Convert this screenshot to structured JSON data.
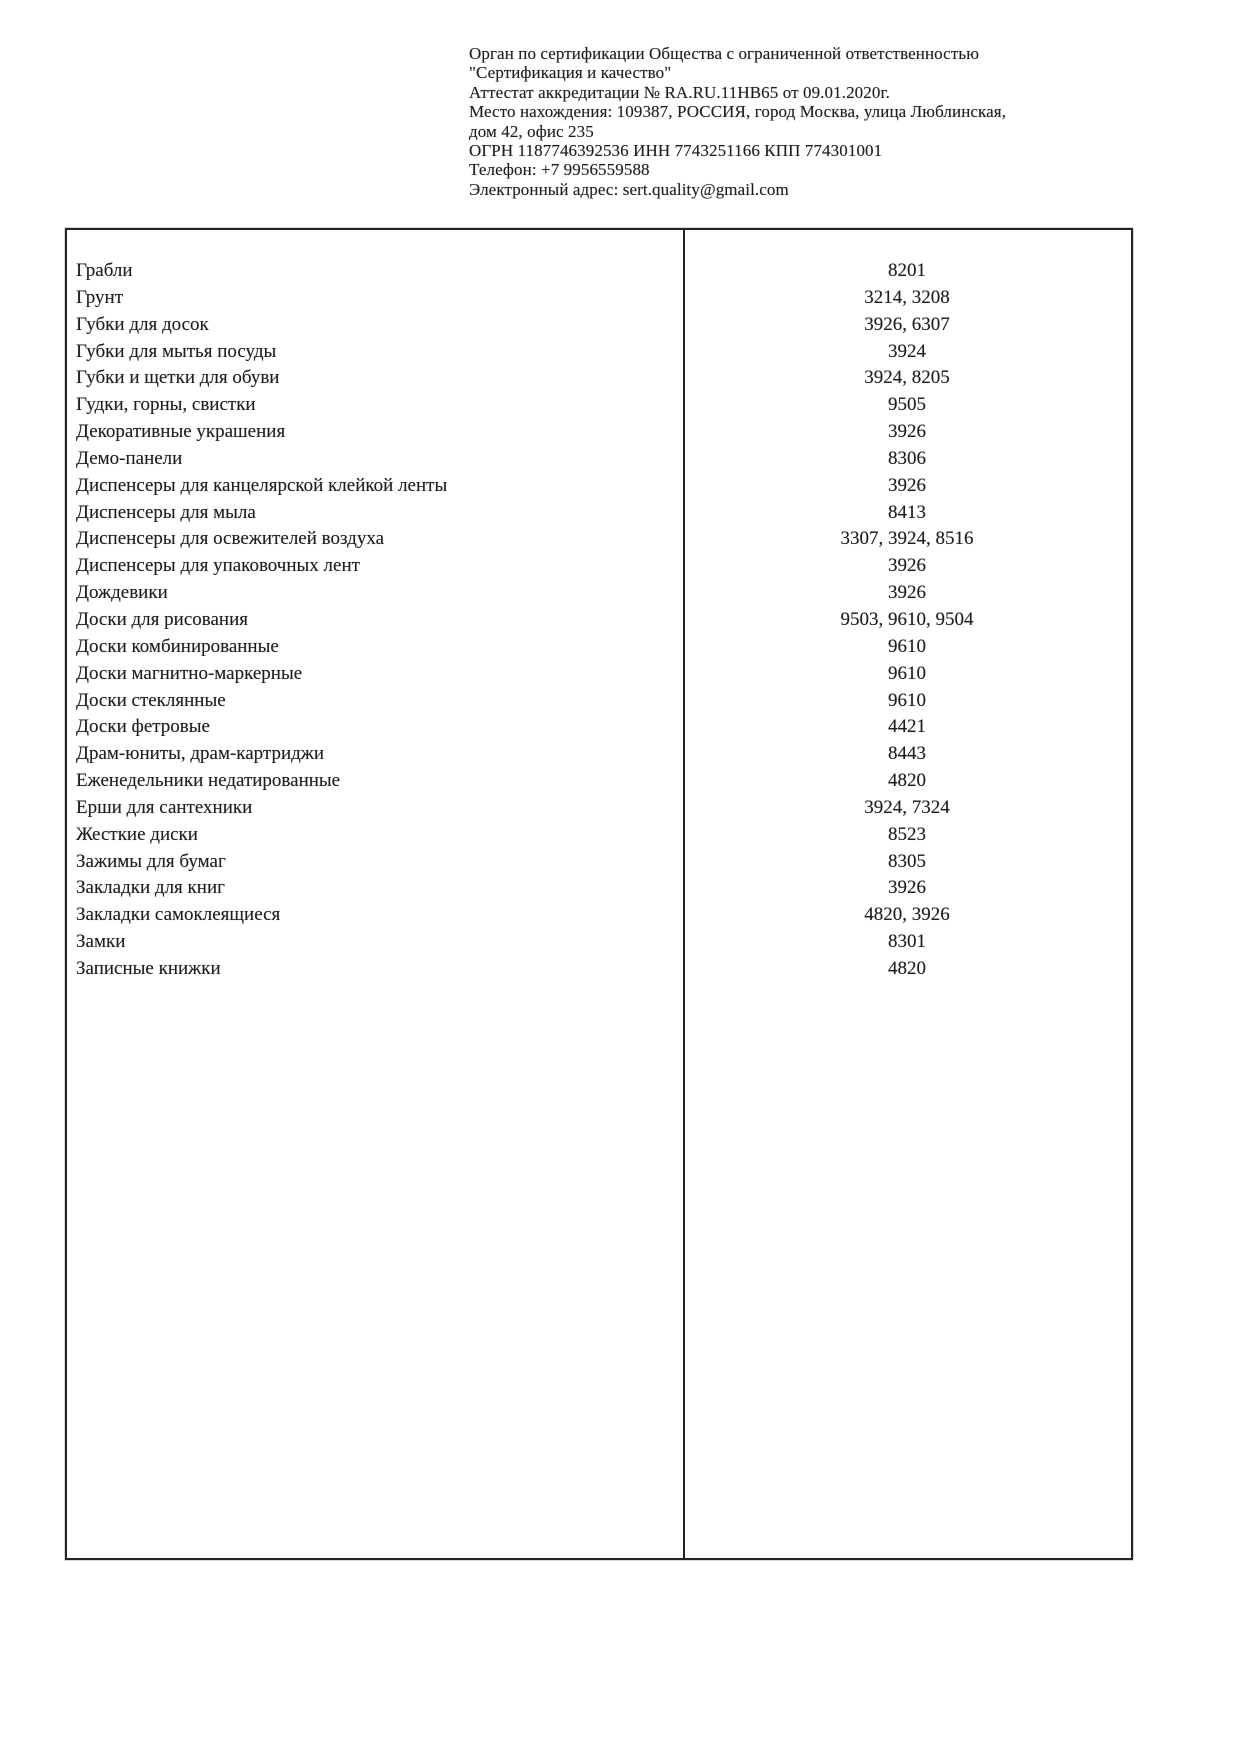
{
  "header": {
    "lines": [
      "Орган по сертификации Общества с ограниченной ответственностью",
      "\"Сертификация и качество\"",
      "Аттестат аккредитации № RA.RU.11НВ65 от 09.01.2020г.",
      "Место нахождения: 109387, РОССИЯ, город Москва, улица Люблинская,",
      "дом 42, офис 235",
      "ОГРН 1187746392536 ИНН 7743251166 КПП 774301001",
      "Телефон: +7 9956559588",
      "Электронный адрес: sert.quality@gmail.com"
    ]
  },
  "table": {
    "rows": [
      {
        "name": "Грабли",
        "codes": "8201"
      },
      {
        "name": "Грунт",
        "codes": "3214, 3208"
      },
      {
        "name": "Губки для досок",
        "codes": "3926, 6307"
      },
      {
        "name": "Губки для мытья посуды",
        "codes": "3924"
      },
      {
        "name": "Губки и щетки для обуви",
        "codes": "3924, 8205"
      },
      {
        "name": "Гудки, горны, свистки",
        "codes": "9505"
      },
      {
        "name": "Декоративные украшения",
        "codes": "3926"
      },
      {
        "name": "Демо-панели",
        "codes": "8306"
      },
      {
        "name": "Диспенсеры для канцелярской клейкой ленты",
        "codes": "3926"
      },
      {
        "name": "Диспенсеры для мыла",
        "codes": "8413"
      },
      {
        "name": "Диспенсеры для освежителей воздуха",
        "codes": "3307, 3924, 8516"
      },
      {
        "name": "Диспенсеры для упаковочных лент",
        "codes": "3926"
      },
      {
        "name": "Дождевики",
        "codes": "3926"
      },
      {
        "name": "Доски для рисования",
        "codes": "9503, 9610, 9504"
      },
      {
        "name": "Доски комбинированные",
        "codes": "9610"
      },
      {
        "name": "Доски магнитно-маркерные",
        "codes": "9610"
      },
      {
        "name": "Доски стеклянные",
        "codes": "9610"
      },
      {
        "name": "Доски фетровые",
        "codes": "4421"
      },
      {
        "name": "Драм-юниты, драм-картриджи",
        "codes": "8443"
      },
      {
        "name": "Еженедельники недатированные",
        "codes": "4820"
      },
      {
        "name": "Ерши для сантехники",
        "codes": "3924, 7324"
      },
      {
        "name": "Жесткие диски",
        "codes": "8523"
      },
      {
        "name": "Зажимы для бумаг",
        "codes": "8305"
      },
      {
        "name": "Закладки для книг",
        "codes": "3926"
      },
      {
        "name": "Закладки самоклеящиеся",
        "codes": "4820, 3926"
      },
      {
        "name": "Замки",
        "codes": "8301"
      },
      {
        "name": "Записные книжки",
        "codes": "4820"
      }
    ]
  },
  "colors": {
    "ink": "#1e1e1e",
    "border": "#242424",
    "page": "#ffffff"
  }
}
